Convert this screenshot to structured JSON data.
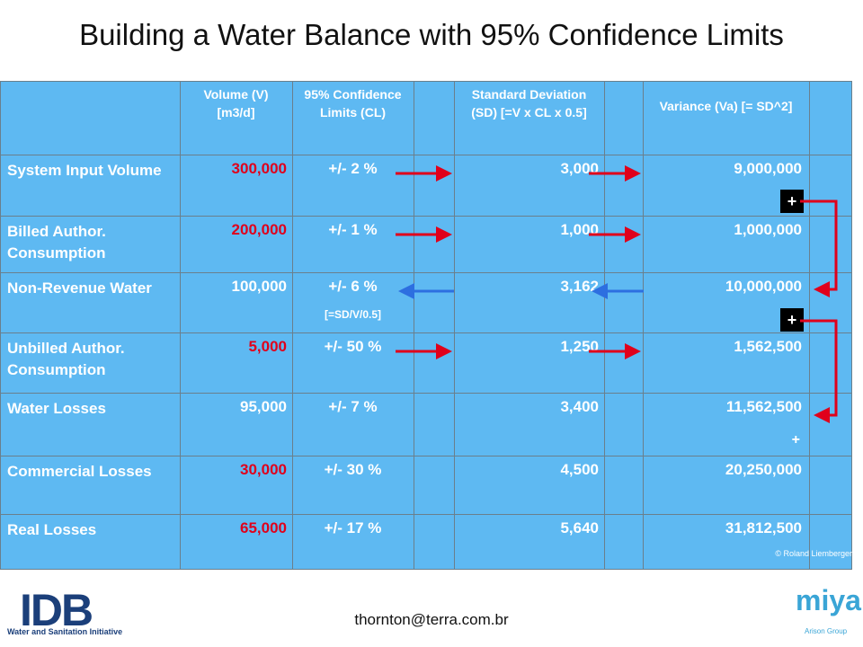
{
  "title": "Building a Water Balance with 95% Confidence Limits",
  "table": {
    "header": [
      "Volume (V) [m3/d]",
      "95% Confidence Limits (CL)",
      "Standard Deviation (SD) [=V x CL x 0.5]",
      "Variance (Va) [= SD^2]"
    ],
    "rows": [
      {
        "label": "System Input Volume",
        "volume": "300,000",
        "cl": "+/- 2 %",
        "sd": "3,000",
        "variance": "9,000,000",
        "highlight": true,
        "arrow_direction": "right"
      },
      {
        "label": "Billed Author. Consumption",
        "volume": "200,000",
        "cl": "+/- 1 %",
        "sd": "1,000",
        "variance": "1,000,000",
        "highlight": true,
        "arrow_direction": "right"
      },
      {
        "label": "Non-Revenue Water",
        "volume": "100,000",
        "cl": "+/- 6 %",
        "cl_note": "[=SD/V/0.5]",
        "sd": "3,162",
        "variance": "10,000,000",
        "highlight": false,
        "arrow_direction": "left"
      },
      {
        "label": "Unbilled Author. Consumption",
        "volume": "5,000",
        "cl": "+/- 50 %",
        "sd": "1,250",
        "variance": "1,562,500",
        "highlight": true,
        "arrow_direction": "right"
      },
      {
        "label": "Water Losses",
        "volume": "95,000",
        "cl": "+/- 7 %",
        "sd": "3,400",
        "variance": "11,562,500",
        "variance_note": "+",
        "highlight": false
      },
      {
        "label": "Commercial Losses",
        "volume": "30,000",
        "cl": "+/- 30 %",
        "sd": "4,500",
        "variance": "20,250,000",
        "highlight": true
      },
      {
        "label": "Real Losses",
        "volume": "65,000",
        "cl": "+/- 17 %",
        "sd": "5,640",
        "variance": "31,812,500",
        "highlight": true
      }
    ],
    "plus_markers": [
      "+",
      "+"
    ]
  },
  "copyright": "© Roland Liemberger",
  "footer": {
    "email": "thornton@terra.com.br",
    "left_logo": "IDB",
    "left_logo_caption": "Water and Sanitation Initiative",
    "right_logo": "miya",
    "right_logo_caption": "Arison Group"
  }
}
